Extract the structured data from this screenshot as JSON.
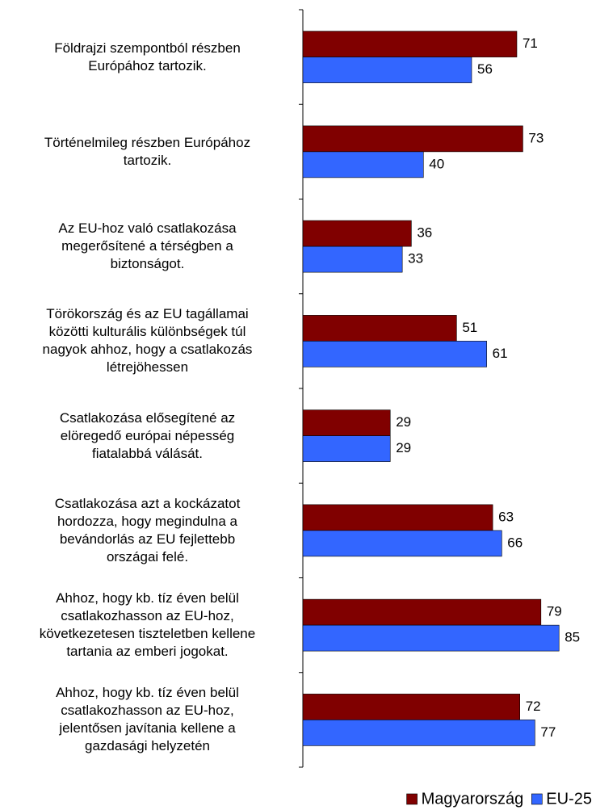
{
  "chart_data": {
    "type": "bar",
    "orientation": "horizontal",
    "categories": [
      "Földrajzi szempontból részben\nEurópához tartozik.",
      "Történelmileg részben Európához\ntartozik.",
      "Az EU-hoz való csatlakozása\nmegerősítené a térségben a\nbiztonságot.",
      "Törökország és az EU tagállamai\nközötti kulturális különbségek túl\nnagyok ahhoz, hogy a csatlakozás\nlétrejöhessen",
      "Csatlakozása elősegítené az\nelöregedő európai népesség\nfiatalabbá válását.",
      "Csatlakozása azt a kockázatot\nhordozza, hogy megindulna a\nbevándorlás az EU fejlettebb\nországai felé.",
      "Ahhoz, hogy kb. tíz éven belül\ncsatlakozhasson az EU-hoz,\nkövetkezetesen tiszteletben kellene\ntartania az emberi jogokat.",
      "Ahhoz, hogy kb. tíz éven belül\ncsatlakozhasson az EU-hoz,\njelentősen javítania kellene a\ngazdasági helyzetén"
    ],
    "series": [
      {
        "name": "Magyarország",
        "color": "#800000",
        "values": [
          71,
          73,
          36,
          51,
          29,
          63,
          79,
          72
        ]
      },
      {
        "name": "EU-25",
        "color": "#3366ff",
        "values": [
          56,
          40,
          33,
          61,
          29,
          66,
          85,
          77
        ]
      }
    ],
    "xlim": [
      0,
      97
    ],
    "legend": "bottom-right"
  }
}
